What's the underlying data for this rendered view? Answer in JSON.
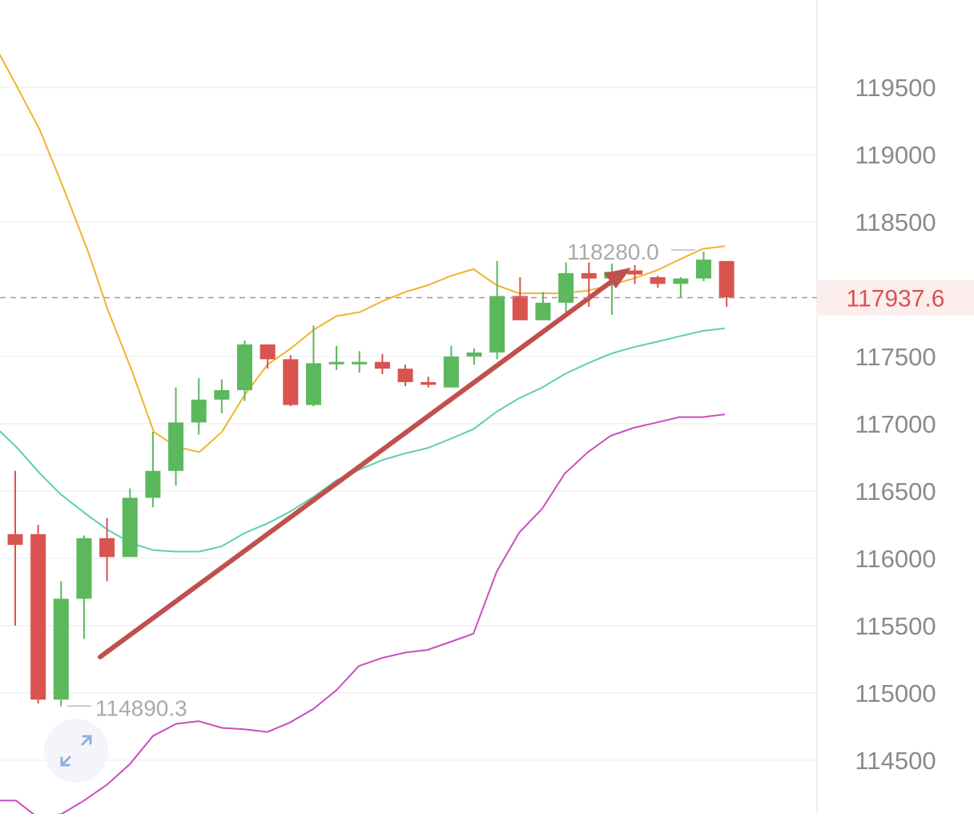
{
  "chart_data": {
    "type": "candlestick",
    "y_axis": {
      "ticks": [
        "119500",
        "119000",
        "118500",
        "117500",
        "117000",
        "116500",
        "116000",
        "115500",
        "115000",
        "114500"
      ],
      "min": 114100,
      "max": 120150
    },
    "last_price": "117937.6",
    "high_marker": "118280.0",
    "low_marker": "114890.3",
    "candles": [
      {
        "o": 116180,
        "c": 116100,
        "h": 116650,
        "l": 115500
      },
      {
        "o": 116180,
        "c": 114950,
        "h": 116250,
        "l": 114920
      },
      {
        "o": 114950,
        "c": 115700,
        "h": 115830,
        "l": 114900
      },
      {
        "o": 115700,
        "c": 116150,
        "h": 116170,
        "l": 115400
      },
      {
        "o": 116150,
        "c": 116010,
        "h": 116300,
        "l": 115830
      },
      {
        "o": 116010,
        "c": 116450,
        "h": 116520,
        "l": 116010
      },
      {
        "o": 116450,
        "c": 116650,
        "h": 116940,
        "l": 116380
      },
      {
        "o": 116650,
        "c": 117010,
        "h": 117270,
        "l": 116540
      },
      {
        "o": 117010,
        "c": 117180,
        "h": 117340,
        "l": 116920
      },
      {
        "o": 117180,
        "c": 117250,
        "h": 117330,
        "l": 117080
      },
      {
        "o": 117250,
        "c": 117590,
        "h": 117620,
        "l": 117170
      },
      {
        "o": 117590,
        "c": 117480,
        "h": 117590,
        "l": 117410
      },
      {
        "o": 117480,
        "c": 117140,
        "h": 117510,
        "l": 117130
      },
      {
        "o": 117140,
        "c": 117450,
        "h": 117730,
        "l": 117130
      },
      {
        "o": 117450,
        "c": 117460,
        "h": 117580,
        "l": 117400
      },
      {
        "o": 117460,
        "c": 117460,
        "h": 117540,
        "l": 117380
      },
      {
        "o": 117460,
        "c": 117410,
        "h": 117520,
        "l": 117370
      },
      {
        "o": 117410,
        "c": 117310,
        "h": 117440,
        "l": 117280
      },
      {
        "o": 117310,
        "c": 117290,
        "h": 117350,
        "l": 117270
      },
      {
        "o": 117270,
        "c": 117500,
        "h": 117580,
        "l": 117270
      },
      {
        "o": 117500,
        "c": 117530,
        "h": 117560,
        "l": 117440
      },
      {
        "o": 117530,
        "c": 117950,
        "h": 118210,
        "l": 117480
      },
      {
        "o": 117950,
        "c": 117770,
        "h": 118090,
        "l": 117770
      },
      {
        "o": 117770,
        "c": 117900,
        "h": 117980,
        "l": 117770
      },
      {
        "o": 117900,
        "c": 118120,
        "h": 118200,
        "l": 117790
      },
      {
        "o": 118120,
        "c": 118080,
        "h": 118200,
        "l": 117870
      },
      {
        "o": 118080,
        "c": 118130,
        "h": 118190,
        "l": 117810
      },
      {
        "o": 118140,
        "c": 118110,
        "h": 118180,
        "l": 118040
      },
      {
        "o": 118090,
        "c": 118040,
        "h": 118100,
        "l": 118010
      },
      {
        "o": 118040,
        "c": 118080,
        "h": 118090,
        "l": 117940
      },
      {
        "o": 118080,
        "c": 118220,
        "h": 118280,
        "l": 118060
      },
      {
        "o": 118210,
        "c": 117940,
        "h": 118210,
        "l": 117870
      }
    ],
    "upper_band": [
      [
        -10,
        119850
      ],
      [
        20,
        119520
      ],
      [
        50,
        119180
      ],
      [
        80,
        118740
      ],
      [
        110,
        118280
      ],
      [
        135,
        117840
      ],
      [
        165,
        117390
      ],
      [
        192,
        116940
      ],
      [
        220,
        116830
      ],
      [
        249,
        116790
      ],
      [
        277,
        116940
      ],
      [
        306,
        117220
      ],
      [
        334,
        117440
      ],
      [
        363,
        117560
      ],
      [
        392,
        117700
      ],
      [
        420,
        117800
      ],
      [
        449,
        117830
      ],
      [
        477,
        117910
      ],
      [
        506,
        117980
      ],
      [
        534,
        118030
      ],
      [
        563,
        118100
      ],
      [
        591,
        118150
      ],
      [
        620,
        118030
      ],
      [
        648,
        117970
      ],
      [
        677,
        117970
      ],
      [
        705,
        117970
      ],
      [
        734,
        117990
      ],
      [
        762,
        118030
      ],
      [
        791,
        118080
      ],
      [
        820,
        118140
      ],
      [
        848,
        118220
      ],
      [
        877,
        118300
      ],
      [
        905,
        118320
      ]
    ],
    "middle_band": [
      [
        -10,
        117000
      ],
      [
        20,
        116830
      ],
      [
        50,
        116630
      ],
      [
        75,
        116480
      ],
      [
        105,
        116340
      ],
      [
        135,
        116210
      ],
      [
        165,
        116110
      ],
      [
        192,
        116060
      ],
      [
        220,
        116050
      ],
      [
        249,
        116050
      ],
      [
        277,
        116090
      ],
      [
        306,
        116190
      ],
      [
        334,
        116260
      ],
      [
        363,
        116350
      ],
      [
        392,
        116460
      ],
      [
        420,
        116580
      ],
      [
        449,
        116660
      ],
      [
        477,
        116730
      ],
      [
        506,
        116780
      ],
      [
        534,
        116820
      ],
      [
        563,
        116890
      ],
      [
        591,
        116960
      ],
      [
        620,
        117090
      ],
      [
        648,
        117190
      ],
      [
        677,
        117270
      ],
      [
        705,
        117370
      ],
      [
        734,
        117450
      ],
      [
        762,
        117520
      ],
      [
        791,
        117570
      ],
      [
        820,
        117610
      ],
      [
        848,
        117650
      ],
      [
        877,
        117690
      ],
      [
        905,
        117710
      ]
    ],
    "lower_band": [
      [
        -10,
        114200
      ],
      [
        20,
        114200
      ],
      [
        48,
        114070
      ],
      [
        77,
        114100
      ],
      [
        105,
        114200
      ],
      [
        134,
        114320
      ],
      [
        162,
        114470
      ],
      [
        191,
        114680
      ],
      [
        220,
        114770
      ],
      [
        248,
        114790
      ],
      [
        277,
        114740
      ],
      [
        305,
        114730
      ],
      [
        334,
        114710
      ],
      [
        362,
        114780
      ],
      [
        391,
        114880
      ],
      [
        420,
        115020
      ],
      [
        448,
        115200
      ],
      [
        477,
        115260
      ],
      [
        506,
        115300
      ],
      [
        534,
        115320
      ],
      [
        563,
        115380
      ],
      [
        591,
        115440
      ],
      [
        620,
        115900
      ],
      [
        648,
        116190
      ],
      [
        677,
        116370
      ],
      [
        705,
        116630
      ],
      [
        734,
        116790
      ],
      [
        762,
        116910
      ],
      [
        791,
        116970
      ],
      [
        820,
        117010
      ],
      [
        848,
        117050
      ],
      [
        877,
        117050
      ],
      [
        905,
        117070
      ]
    ],
    "colors": {
      "up": "#5cb85c",
      "down": "#d9534f",
      "upper_band": "#f0b429",
      "middle_band": "#5ecfad",
      "lower_band": "#c94fbd",
      "trend_arrow": "#c0504d",
      "price_label": "#d9534f",
      "axis_text": "#8a8a8a",
      "grid": "#f0f0f0"
    },
    "expand_button": {
      "icon": "expand-arrows-icon"
    }
  }
}
